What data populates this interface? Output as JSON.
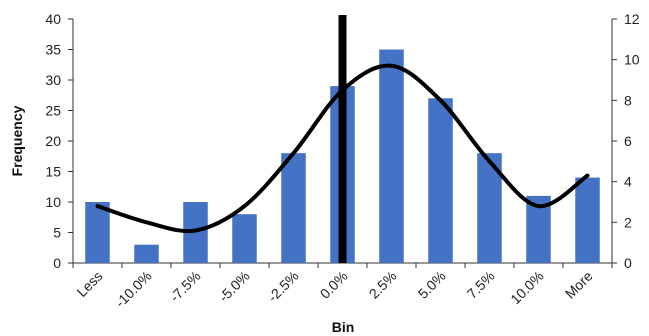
{
  "chart_data": {
    "type": "bar",
    "title": "",
    "xlabel": "Bin",
    "ylabel": "Frequency",
    "categories": [
      "Less",
      "-10.0%",
      "-7.5%",
      "-5.0%",
      "-2.5%",
      "0.0%",
      "2.5%",
      "5.0%",
      "7.5%",
      "10.0%",
      "More"
    ],
    "series": [
      {
        "values": [
          10,
          3,
          10,
          8,
          18,
          29,
          35,
          27,
          18,
          11,
          14
        ],
        "color": "#4472c4"
      }
    ],
    "ylim": [
      0,
      40
    ],
    "yticks": [
      0,
      5,
      10,
      15,
      20,
      25,
      30,
      35,
      40
    ],
    "y2lim": [
      0,
      12
    ],
    "y2ticks": [
      0,
      2,
      4,
      6,
      8,
      10,
      12
    ],
    "curve": {
      "axis": "secondary",
      "color": "#000000",
      "values": [
        2.8,
        2.0,
        1.6,
        2.8,
        5.4,
        8.5,
        9.7,
        8.0,
        5.0,
        2.8,
        4.3
      ]
    },
    "vertical_marker": {
      "category": "0.0%",
      "color": "#000000"
    },
    "grid": false,
    "legend": "none"
  }
}
